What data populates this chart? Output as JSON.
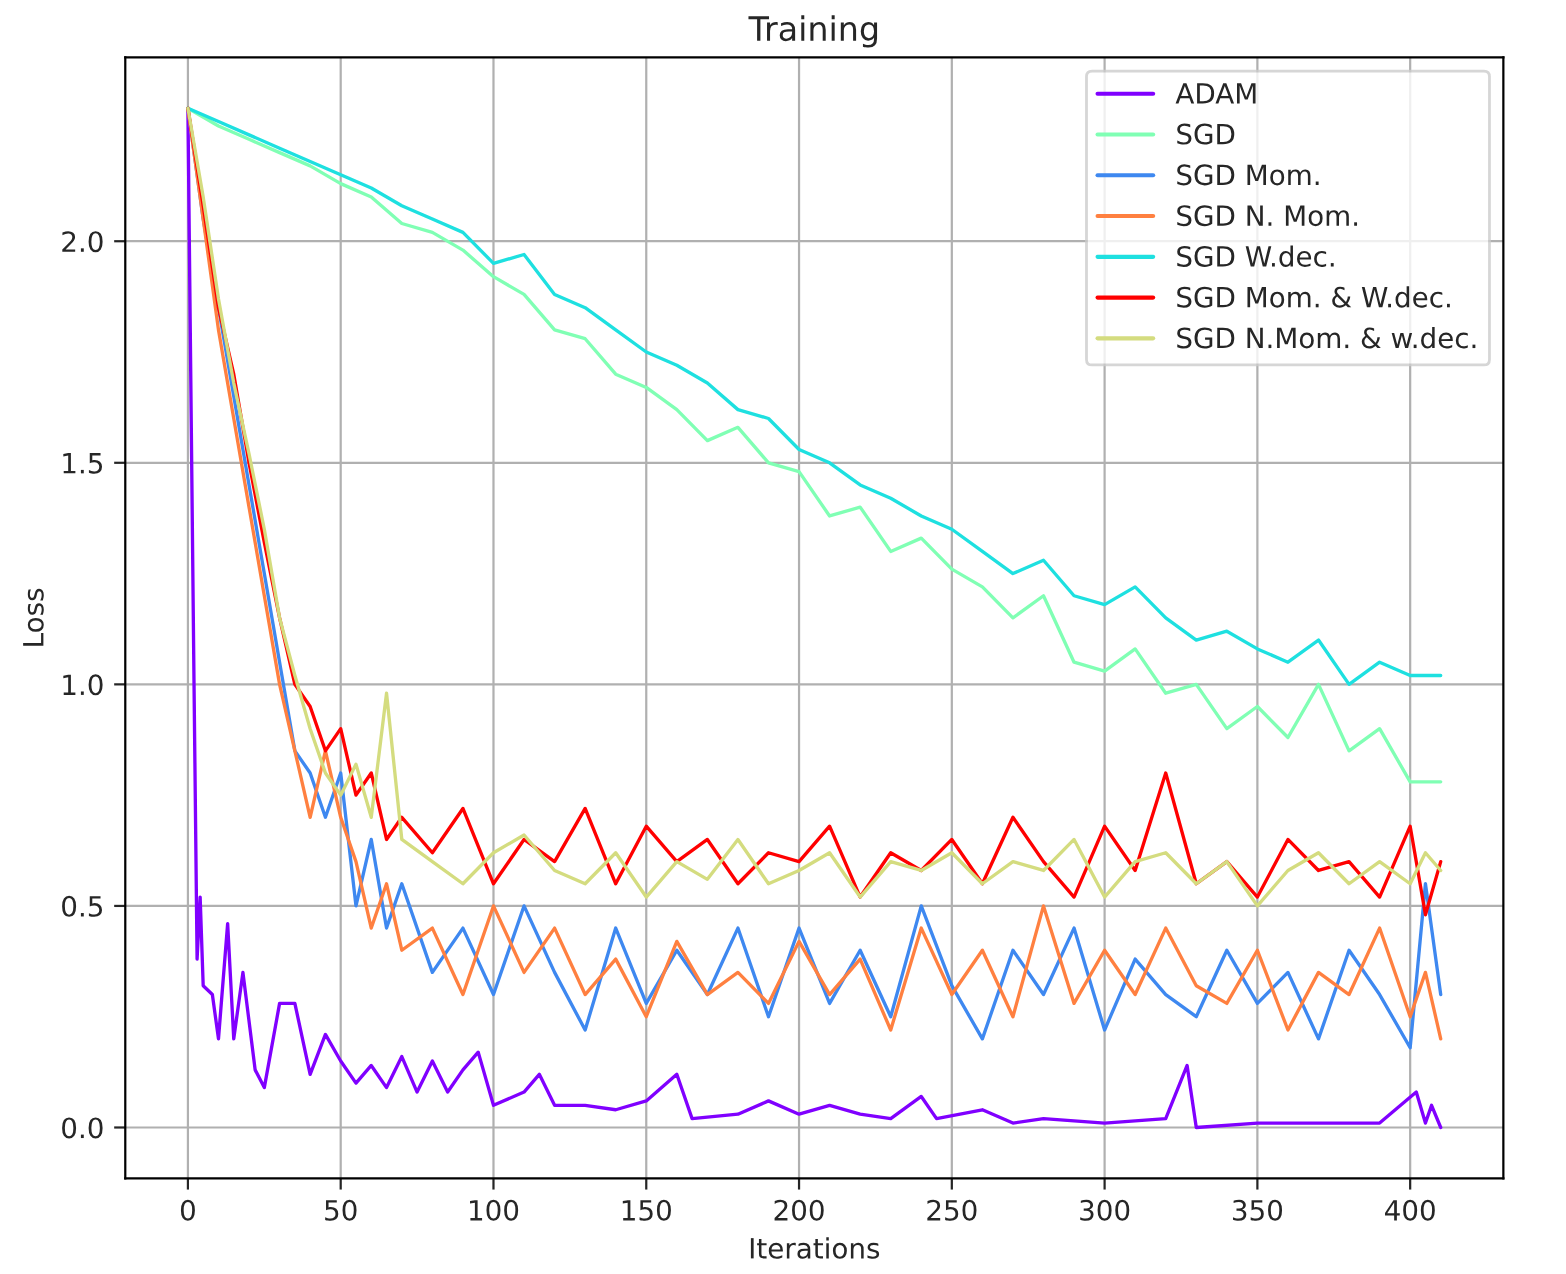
{
  "chart_data": {
    "type": "line",
    "title": "Training",
    "xlabel": "Iterations",
    "ylabel": "Loss",
    "xlim": [
      -20.5,
      430.5
    ],
    "ylim": [
      -0.115,
      2.415
    ],
    "xticks": [
      0,
      50,
      100,
      150,
      200,
      250,
      300,
      350,
      400
    ],
    "yticks": [
      {
        "value": 0,
        "label": "0.0"
      },
      {
        "value": 0.5,
        "label": "0.5"
      },
      {
        "value": 1,
        "label": "1.0"
      },
      {
        "value": 1.5,
        "label": "1.5"
      },
      {
        "value": 2,
        "label": "2.0"
      }
    ],
    "grid": true,
    "legend": "top right",
    "line_style": "solid",
    "marker": "none",
    "series": [
      {
        "name": "ADAM",
        "color": "#8000ff",
        "x": [
          0,
          2,
          3,
          4,
          5,
          8,
          10,
          13,
          15,
          18,
          22,
          25,
          30,
          35,
          40,
          45,
          50,
          55,
          60,
          65,
          70,
          75,
          80,
          85,
          90,
          95,
          100,
          110,
          115,
          120,
          130,
          140,
          150,
          160,
          165,
          180,
          190,
          200,
          210,
          220,
          230,
          240,
          245,
          260,
          270,
          280,
          300,
          320,
          327,
          330,
          350,
          370,
          390,
          402,
          405,
          407,
          410
        ],
        "values": [
          2.3,
          1.0,
          0.38,
          0.52,
          0.32,
          0.3,
          0.2,
          0.46,
          0.2,
          0.35,
          0.13,
          0.09,
          0.28,
          0.28,
          0.12,
          0.21,
          0.15,
          0.1,
          0.14,
          0.09,
          0.16,
          0.08,
          0.15,
          0.08,
          0.13,
          0.17,
          0.05,
          0.08,
          0.12,
          0.05,
          0.05,
          0.04,
          0.06,
          0.12,
          0.02,
          0.03,
          0.06,
          0.03,
          0.05,
          0.03,
          0.02,
          0.07,
          0.02,
          0.04,
          0.01,
          0.02,
          0.01,
          0.02,
          0.14,
          0.0,
          0.01,
          0.01,
          0.01,
          0.08,
          0.01,
          0.05,
          0.0
        ]
      },
      {
        "name": "SGD",
        "color": "#80ffb4",
        "x": [
          0,
          10,
          20,
          30,
          40,
          50,
          60,
          70,
          80,
          90,
          100,
          110,
          120,
          130,
          140,
          150,
          160,
          170,
          180,
          190,
          200,
          210,
          220,
          230,
          240,
          250,
          260,
          270,
          280,
          290,
          300,
          310,
          320,
          330,
          340,
          350,
          360,
          370,
          380,
          390,
          400,
          410
        ],
        "values": [
          2.3,
          2.26,
          2.23,
          2.2,
          2.17,
          2.13,
          2.1,
          2.04,
          2.02,
          1.98,
          1.92,
          1.88,
          1.8,
          1.78,
          1.7,
          1.67,
          1.62,
          1.55,
          1.58,
          1.5,
          1.48,
          1.38,
          1.4,
          1.3,
          1.33,
          1.26,
          1.22,
          1.15,
          1.2,
          1.05,
          1.03,
          1.08,
          0.98,
          1.0,
          0.9,
          0.95,
          0.88,
          1.0,
          0.85,
          0.9,
          0.78,
          0.78
        ]
      },
      {
        "name": "SGD Mom.",
        "color": "#3e88f0",
        "x": [
          0,
          5,
          10,
          15,
          20,
          25,
          30,
          35,
          40,
          45,
          50,
          55,
          60,
          65,
          70,
          80,
          90,
          100,
          110,
          120,
          130,
          140,
          150,
          160,
          170,
          180,
          190,
          200,
          210,
          220,
          230,
          240,
          250,
          260,
          270,
          280,
          290,
          300,
          310,
          320,
          330,
          340,
          350,
          360,
          370,
          380,
          390,
          400,
          405,
          410
        ],
        "values": [
          2.3,
          2.05,
          1.85,
          1.65,
          1.45,
          1.25,
          1.05,
          0.85,
          0.8,
          0.7,
          0.8,
          0.5,
          0.65,
          0.45,
          0.55,
          0.35,
          0.45,
          0.3,
          0.5,
          0.35,
          0.22,
          0.45,
          0.28,
          0.4,
          0.3,
          0.45,
          0.25,
          0.45,
          0.28,
          0.4,
          0.25,
          0.5,
          0.32,
          0.2,
          0.4,
          0.3,
          0.45,
          0.22,
          0.38,
          0.3,
          0.25,
          0.4,
          0.28,
          0.35,
          0.2,
          0.4,
          0.3,
          0.18,
          0.55,
          0.3
        ]
      },
      {
        "name": "SGD N. Mom.",
        "color": "#ff8040",
        "x": [
          0,
          5,
          10,
          15,
          20,
          25,
          30,
          35,
          40,
          45,
          50,
          55,
          60,
          65,
          70,
          80,
          90,
          100,
          110,
          120,
          130,
          140,
          150,
          160,
          170,
          180,
          190,
          200,
          210,
          220,
          230,
          240,
          250,
          260,
          270,
          280,
          290,
          300,
          310,
          320,
          330,
          340,
          350,
          360,
          370,
          380,
          390,
          400,
          405,
          410
        ],
        "values": [
          2.3,
          2.05,
          1.8,
          1.6,
          1.4,
          1.2,
          1.0,
          0.85,
          0.7,
          0.85,
          0.7,
          0.6,
          0.45,
          0.55,
          0.4,
          0.45,
          0.3,
          0.5,
          0.35,
          0.45,
          0.3,
          0.38,
          0.25,
          0.42,
          0.3,
          0.35,
          0.28,
          0.42,
          0.3,
          0.38,
          0.22,
          0.45,
          0.3,
          0.4,
          0.25,
          0.5,
          0.28,
          0.4,
          0.3,
          0.45,
          0.32,
          0.28,
          0.4,
          0.22,
          0.35,
          0.3,
          0.45,
          0.25,
          0.35,
          0.2
        ]
      },
      {
        "name": "SGD W.dec.",
        "color": "#1ee0e0",
        "x": [
          0,
          10,
          20,
          30,
          40,
          50,
          60,
          70,
          80,
          90,
          100,
          110,
          120,
          130,
          140,
          150,
          160,
          170,
          180,
          190,
          200,
          210,
          220,
          230,
          240,
          250,
          260,
          270,
          280,
          290,
          300,
          310,
          320,
          330,
          340,
          350,
          360,
          370,
          380,
          390,
          400,
          410
        ],
        "values": [
          2.3,
          2.27,
          2.24,
          2.21,
          2.18,
          2.15,
          2.12,
          2.08,
          2.05,
          2.02,
          1.95,
          1.97,
          1.88,
          1.85,
          1.8,
          1.75,
          1.72,
          1.68,
          1.62,
          1.6,
          1.53,
          1.5,
          1.45,
          1.42,
          1.38,
          1.35,
          1.3,
          1.25,
          1.28,
          1.2,
          1.18,
          1.22,
          1.15,
          1.1,
          1.12,
          1.08,
          1.05,
          1.1,
          1.0,
          1.05,
          1.02,
          1.02
        ]
      },
      {
        "name": "SGD Mom. & W.dec.",
        "color": "#ff0000",
        "x": [
          0,
          5,
          10,
          15,
          20,
          25,
          30,
          35,
          40,
          45,
          50,
          55,
          60,
          65,
          70,
          80,
          90,
          100,
          110,
          120,
          130,
          140,
          150,
          160,
          170,
          180,
          190,
          200,
          210,
          220,
          230,
          240,
          250,
          260,
          270,
          280,
          290,
          300,
          310,
          320,
          330,
          340,
          350,
          360,
          370,
          380,
          390,
          400,
          405,
          410
        ],
        "values": [
          2.3,
          2.08,
          1.85,
          1.7,
          1.5,
          1.32,
          1.15,
          1.0,
          0.95,
          0.85,
          0.9,
          0.75,
          0.8,
          0.65,
          0.7,
          0.62,
          0.72,
          0.55,
          0.65,
          0.6,
          0.72,
          0.55,
          0.68,
          0.6,
          0.65,
          0.55,
          0.62,
          0.6,
          0.68,
          0.52,
          0.62,
          0.58,
          0.65,
          0.55,
          0.7,
          0.6,
          0.52,
          0.68,
          0.58,
          0.8,
          0.55,
          0.6,
          0.52,
          0.65,
          0.58,
          0.6,
          0.52,
          0.68,
          0.48,
          0.6
        ]
      },
      {
        "name": "SGD N.Mom. & w.dec.",
        "color": "#d4dc7f",
        "x": [
          0,
          5,
          10,
          15,
          20,
          25,
          30,
          35,
          40,
          45,
          50,
          55,
          60,
          65,
          70,
          80,
          90,
          100,
          110,
          120,
          130,
          140,
          150,
          160,
          170,
          180,
          190,
          200,
          210,
          220,
          230,
          240,
          250,
          260,
          270,
          280,
          290,
          300,
          310,
          320,
          330,
          340,
          350,
          360,
          370,
          380,
          390,
          400,
          405,
          410
        ],
        "values": [
          2.3,
          2.1,
          1.87,
          1.68,
          1.52,
          1.35,
          1.15,
          1.02,
          0.9,
          0.8,
          0.75,
          0.82,
          0.7,
          0.98,
          0.65,
          0.6,
          0.55,
          0.62,
          0.66,
          0.58,
          0.55,
          0.62,
          0.52,
          0.6,
          0.56,
          0.65,
          0.55,
          0.58,
          0.62,
          0.52,
          0.6,
          0.58,
          0.62,
          0.55,
          0.6,
          0.58,
          0.65,
          0.52,
          0.6,
          0.62,
          0.55,
          0.6,
          0.5,
          0.58,
          0.62,
          0.55,
          0.6,
          0.55,
          0.62,
          0.58
        ]
      }
    ]
  }
}
